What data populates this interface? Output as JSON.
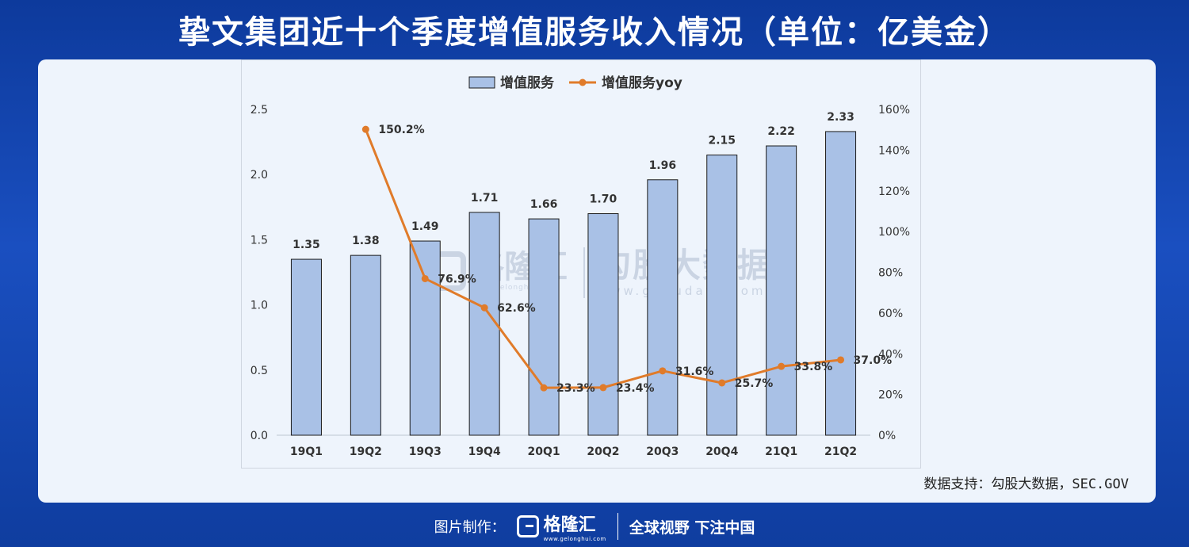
{
  "title": "挚文集团近十个季度增值服务收入情况（单位：亿美金）",
  "source": "数据支持：勾股大数据，SEC.GOV",
  "watermarks": {
    "left_name": "格隆汇",
    "left_url": "www.gelonghui.com",
    "right_name": "勾股大数据",
    "right_url": "www.gogudata.com"
  },
  "footer": {
    "made_by": "图片制作：",
    "brand": "格隆汇",
    "brand_url": "www.gelonghui.com",
    "slogan": "全球视野 下注中国"
  },
  "colors": {
    "bar": "#a9c1e6",
    "bar_stroke": "#1a1a1a",
    "line": "#e07b2a",
    "text": "#333333",
    "title": "#ffffff"
  },
  "chart_data": {
    "type": "bar+line",
    "categories": [
      "19Q1",
      "19Q2",
      "19Q3",
      "19Q4",
      "20Q1",
      "20Q2",
      "20Q3",
      "20Q4",
      "21Q1",
      "21Q2"
    ],
    "series": [
      {
        "name": "增值服务",
        "type": "bar",
        "axis": "left",
        "values": [
          1.35,
          1.38,
          1.49,
          1.71,
          1.66,
          1.7,
          1.96,
          2.15,
          2.22,
          2.33
        ],
        "labels": [
          "1.35",
          "1.38",
          "1.49",
          "1.71",
          "1.66",
          "1.70",
          "1.96",
          "2.15",
          "2.22",
          "2.33"
        ]
      },
      {
        "name": "增值服务yoy",
        "type": "line",
        "axis": "right",
        "values": [
          null,
          150.2,
          76.9,
          62.6,
          23.3,
          23.4,
          31.6,
          25.7,
          33.8,
          37.0
        ],
        "labels": [
          "",
          "150.2%",
          "76.9%",
          "62.6%",
          "23.3%",
          "23.4%",
          "31.6%",
          "25.7%",
          "33.8%",
          "37.0%"
        ]
      }
    ],
    "left_axis": {
      "ylim": [
        0,
        2.5
      ],
      "ticks": [
        "0.0",
        "0.5",
        "1.0",
        "1.5",
        "2.0",
        "2.5"
      ],
      "tick_values": [
        0,
        0.5,
        1.0,
        1.5,
        2.0,
        2.5
      ]
    },
    "right_axis": {
      "ylim": [
        0,
        160
      ],
      "ticks": [
        "0%",
        "20%",
        "40%",
        "60%",
        "80%",
        "100%",
        "120%",
        "140%",
        "160%"
      ],
      "tick_values": [
        0,
        20,
        40,
        60,
        80,
        100,
        120,
        140,
        160
      ]
    },
    "legend": "top-center",
    "grid": false
  }
}
